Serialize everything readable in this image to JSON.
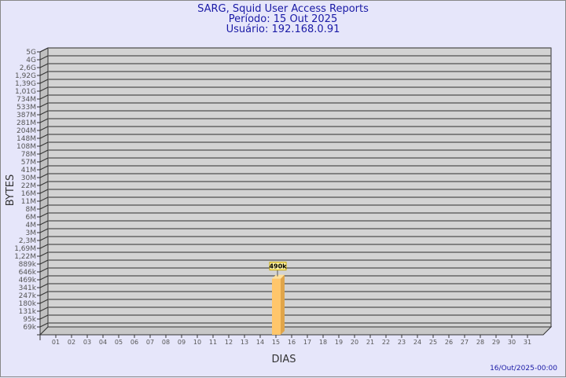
{
  "title": "SARG, Squid User Access Reports",
  "period": "Período: 15 Out 2025",
  "user": "Usuário: 192.168.0.91",
  "timestamp": "16/Out/2025-00:00",
  "colors": {
    "background": "#e6e6fa",
    "plot": "#d3d3d3",
    "bar": "#ffc66b",
    "bar_side": "#e0a54a",
    "title": "#1a1aa6"
  },
  "chart_data": {
    "type": "bar",
    "title": "SARG, Squid User Access Reports",
    "xlabel": "DIAS",
    "ylabel": "BYTES",
    "yscale": "log",
    "grid": true,
    "y_ticks": [
      "5G",
      "4G",
      "2,6G",
      "1,92G",
      "1,39G",
      "1,01G",
      "734M",
      "533M",
      "387M",
      "281M",
      "204M",
      "148M",
      "108M",
      "78M",
      "57M",
      "41M",
      "30M",
      "22M",
      "16M",
      "11M",
      "8M",
      "6M",
      "4M",
      "3M",
      "2,3M",
      "1,69M",
      "1,22M",
      "889k",
      "646k",
      "469k",
      "341k",
      "247k",
      "180k",
      "131k",
      "95k",
      "69k"
    ],
    "categories": [
      "01",
      "02",
      "03",
      "04",
      "05",
      "06",
      "07",
      "08",
      "09",
      "10",
      "11",
      "12",
      "13",
      "14",
      "15",
      "16",
      "17",
      "18",
      "19",
      "20",
      "21",
      "22",
      "23",
      "24",
      "25",
      "26",
      "27",
      "28",
      "29",
      "30",
      "31"
    ],
    "bars": [
      {
        "day": "15",
        "value": 490000,
        "label": "490k"
      }
    ]
  }
}
